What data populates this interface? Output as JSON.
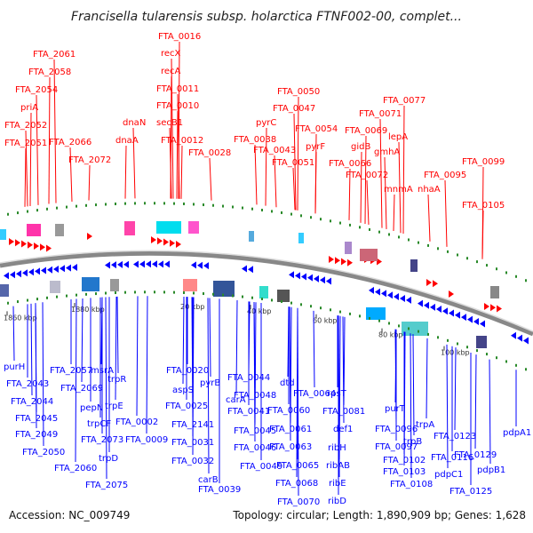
{
  "title": "Francisella tularensis subsp. holarctica FTNF002-00, complet...",
  "footer": {
    "accession": "Accession: NC_009749",
    "stats": "Topology: circular; Length: 1,890,909 bp; Genes: 1,628"
  },
  "colors": {
    "forward": "#ff0000",
    "reverse": "#0000ff",
    "backbone": "#888888",
    "tick_marker": "#2a8a2a"
  },
  "tick_labels": [
    "1860 kbp",
    "1880 kbp",
    "20 kbp",
    "40 kbp",
    "60 kbp",
    "80 kbp",
    "100 kbp"
  ],
  "top_labels": [
    "FTA_0016",
    "recX",
    "recA",
    "FTA_0011",
    "FTA_0010",
    "secB1",
    "FTA_0012",
    "dnaN",
    "dnaA",
    "FTA_2061",
    "FTA_2058",
    "FTA_2054",
    "priA",
    "FTA_2052",
    "FTA_2051",
    "FTA_2066",
    "FTA_2072",
    "FTA_0028",
    "FTA_0050",
    "FTA_0047",
    "pyrC",
    "FTA_0038",
    "FTA_0054",
    "FTA_0043",
    "pyrF",
    "FTA_0051",
    "FTA_0077",
    "FTA_0071",
    "FTA_0069",
    "lepA",
    "gidB",
    "gmhA",
    "FTA_0066",
    "FTA_0072",
    "FTA_0099",
    "FTA_0095",
    "mnmA",
    "nhaA",
    "FTA_0105"
  ],
  "bottom_labels": [
    "purH",
    "FTA_2057",
    "msrA",
    "trpR",
    "FTA_2043",
    "FTA_2069",
    "FTA_2044",
    "pepN",
    "trpE",
    "FTA_2045",
    "trpCF",
    "FTA_0002",
    "FTA_2049",
    "FTA_2073",
    "FTA_0009",
    "FTA_2050",
    "trpD",
    "FTA_2060",
    "FTA_2075",
    "FTA_0020",
    "aspS",
    "pyrB",
    "FTA_0025",
    "carA",
    "FTA_2141",
    "FTA_0031",
    "FTA_0032",
    "carB",
    "FTA_0039",
    "FTA_0044",
    "FTA_0048",
    "FTA_0041",
    "FTA_0045",
    "FTA_0046",
    "FTA_0049",
    "dtd",
    "FTA_0064",
    "FTA_0060",
    "FTA_0061",
    "FTA_0063",
    "FTA_0065",
    "FTA_0068",
    "FTA_0070",
    "rpsT",
    "FTA_0081",
    "def1",
    "ribH",
    "ribAB",
    "ribE",
    "ribD",
    "purT",
    "FTA_0096",
    "FTA_0097",
    "trpA",
    "trpB",
    "FTA_0102",
    "FTA_0103",
    "FTA_0108",
    "FTA_0116",
    "FTA_0123",
    "pdpC1",
    "FTA_0125",
    "FTA_0129",
    "pdpB1",
    "pdpA1"
  ]
}
